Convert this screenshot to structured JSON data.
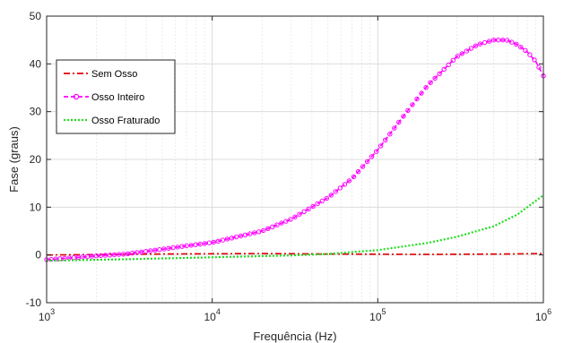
{
  "chart_data": {
    "type": "line",
    "title": "",
    "xlabel": "Frequência (Hz)",
    "ylabel": "Fase (graus)",
    "xscale": "log",
    "xlim": [
      1000,
      1000000
    ],
    "ylim": [
      -10,
      50
    ],
    "x_ticks": [
      {
        "base": "10",
        "exp": "3"
      },
      {
        "base": "10",
        "exp": "4"
      },
      {
        "base": "10",
        "exp": "5"
      },
      {
        "base": "10",
        "exp": "6"
      }
    ],
    "y_ticks": [
      "-10",
      "0",
      "10",
      "20",
      "30",
      "40",
      "50"
    ],
    "grid": true,
    "legend_position": "left-middle",
    "series": [
      {
        "name": "Sem Osso",
        "color": "#e00000",
        "style": "dash-dot",
        "marker": "none",
        "points": [
          [
            1000,
            0.0
          ],
          [
            5000,
            0.2
          ],
          [
            20000,
            0.3
          ],
          [
            50000,
            0.2
          ],
          [
            200000,
            0.1
          ],
          [
            600000,
            0.2
          ],
          [
            1000000,
            0.3
          ]
        ]
      },
      {
        "name": "Osso Inteiro",
        "color": "#ff00ff",
        "style": "dashed",
        "marker": "circle",
        "points": [
          [
            1000,
            -1.0
          ],
          [
            2000,
            -0.2
          ],
          [
            3000,
            0.2
          ],
          [
            5000,
            1.2
          ],
          [
            7000,
            1.9
          ],
          [
            10000,
            2.6
          ],
          [
            20000,
            5.0
          ],
          [
            30000,
            7.5
          ],
          [
            50000,
            12.0
          ],
          [
            70000,
            16.0
          ],
          [
            100000,
            22.0
          ],
          [
            150000,
            30.0
          ],
          [
            200000,
            35.5
          ],
          [
            300000,
            41.5
          ],
          [
            400000,
            44.0
          ],
          [
            500000,
            45.0
          ],
          [
            600000,
            45.0
          ],
          [
            700000,
            44.0
          ],
          [
            800000,
            42.5
          ],
          [
            900000,
            40.5
          ],
          [
            1000000,
            37.5
          ]
        ]
      },
      {
        "name": "Osso Fraturado",
        "color": "#22dd22",
        "style": "dotted",
        "marker": "none",
        "points": [
          [
            1000,
            -1.2
          ],
          [
            3000,
            -0.9
          ],
          [
            10000,
            -0.5
          ],
          [
            30000,
            -0.1
          ],
          [
            50000,
            0.2
          ],
          [
            100000,
            1.0
          ],
          [
            200000,
            2.5
          ],
          [
            300000,
            3.8
          ],
          [
            500000,
            6.0
          ],
          [
            700000,
            8.5
          ],
          [
            1000000,
            12.5
          ]
        ]
      }
    ]
  }
}
